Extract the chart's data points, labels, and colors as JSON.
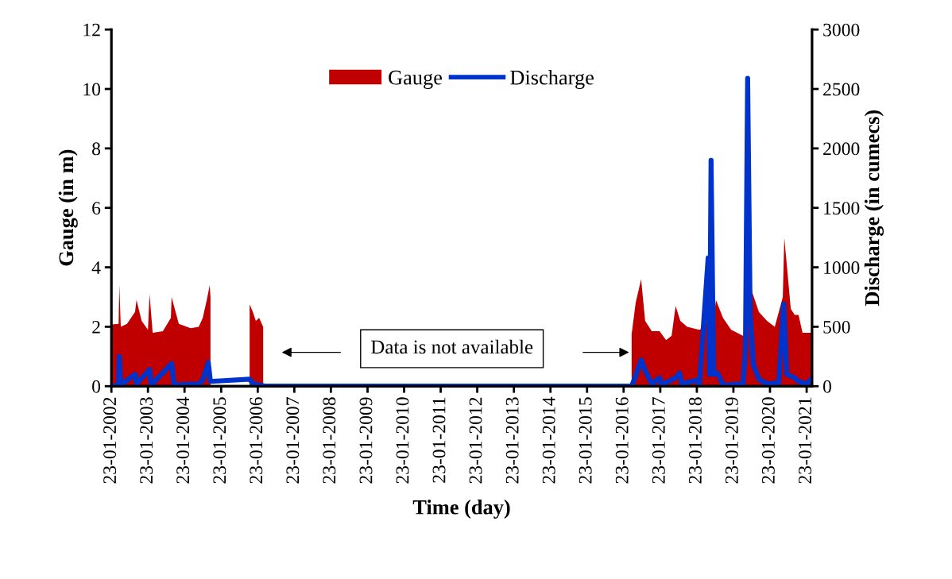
{
  "chart_data": {
    "type": "area",
    "xlabel": "Time (day)",
    "ylabel": "Gauge (in m)",
    "y2label": "Discharge (in cumecs)",
    "xlim": [
      "2002-01-23",
      "2021-03-18"
    ],
    "xticks": [
      {
        "value": "2002-01-23",
        "label": "23-01-2002"
      },
      {
        "value": "2003-01-23",
        "label": "23-01-2003"
      },
      {
        "value": "2004-01-23",
        "label": "23-01-2004"
      },
      {
        "value": "2005-01-23",
        "label": "23-01-2005"
      },
      {
        "value": "2006-01-23",
        "label": "23-01-2006"
      },
      {
        "value": "2007-01-23",
        "label": "23-01-2007"
      },
      {
        "value": "2008-01-23",
        "label": "23-01-2008"
      },
      {
        "value": "2009-01-23",
        "label": "23-01-2009"
      },
      {
        "value": "2010-01-23",
        "label": "23-01-2010"
      },
      {
        "value": "2011-01-23",
        "label": "23-01-2011"
      },
      {
        "value": "2012-01-23",
        "label": "23-01-2012"
      },
      {
        "value": "2013-01-23",
        "label": "23-01-2013"
      },
      {
        "value": "2014-01-23",
        "label": "23-01-2014"
      },
      {
        "value": "2015-01-23",
        "label": "23-01-2015"
      },
      {
        "value": "2016-01-23",
        "label": "23-01-2016"
      },
      {
        "value": "2017-01-23",
        "label": "23-01-2017"
      },
      {
        "value": "2018-01-23",
        "label": "23-01-2018"
      },
      {
        "value": "2019-01-23",
        "label": "23-01-2019"
      },
      {
        "value": "2020-01-23",
        "label": "23-01-2020"
      },
      {
        "value": "2021-01-23",
        "label": "23-01-2021"
      }
    ],
    "ylim": [
      0,
      12
    ],
    "yticks": [
      0,
      2,
      4,
      6,
      8,
      10,
      12
    ],
    "y2lim": [
      0,
      3000
    ],
    "y2ticks": [
      0,
      500,
      1000,
      1500,
      2000,
      2500,
      3000
    ],
    "legend": "top",
    "grid": false,
    "annotations": [
      "Data is not available"
    ],
    "series": [
      {
        "name": "Gauge",
        "color": "#c00000",
        "x": [
          "2002-01-30",
          "2002-04-05",
          "2002-04-12",
          "2002-04-27",
          "2002-06-28",
          "2002-09-16",
          "2002-10-01",
          "2002-11-21",
          "2003-01-23",
          "2003-02-08",
          "2003-03-11",
          "2003-06-21",
          "2003-09-09",
          "2003-09-16",
          "2003-11-27",
          "2004-03-25",
          "2004-06-13",
          "2004-07-23",
          "2004-09-01",
          "2004-10-01",
          "2004-10-08",
          "2004-10-19",
          "2005-10-26",
          "2005-11-03",
          "2005-12-05",
          "2006-01-04",
          "2006-02-06",
          "2006-03-18",
          "2006-03-26",
          "2016-03-29",
          "2016-04-12",
          "2016-05-22",
          "2016-07-16",
          "2016-08-25",
          "2016-10-30",
          "2017-01-16",
          "2017-03-22",
          "2017-05-16",
          "2017-06-25",
          "2017-08-11",
          "2017-10-19",
          "2018-02-17",
          "2018-04-20",
          "2018-06-14",
          "2018-07-24",
          "2018-08-02",
          "2018-10-11",
          "2019-01-01",
          "2019-04-28",
          "2019-06-14",
          "2019-07-09",
          "2019-07-16",
          "2019-10-04",
          "2019-12-24",
          "2020-03-11",
          "2020-05-30",
          "2020-06-14",
          "2020-08-18",
          "2020-09-26",
          "2020-11-03",
          "2020-12-13",
          "2021-03-18"
        ],
        "values": [
          2.08,
          2.1,
          3.42,
          2.0,
          2.1,
          2.5,
          2.9,
          2.2,
          1.9,
          3.1,
          1.8,
          1.85,
          2.3,
          3.0,
          2.1,
          1.95,
          2.0,
          2.3,
          2.9,
          3.4,
          3.0,
          null,
          null,
          2.75,
          2.5,
          2.2,
          2.3,
          2.0,
          null,
          null,
          1.75,
          2.8,
          3.6,
          2.2,
          1.85,
          1.85,
          1.55,
          1.7,
          2.7,
          2.2,
          2.0,
          1.9,
          2.0,
          4.9,
          2.65,
          2.9,
          2.3,
          1.9,
          1.7,
          1.7,
          4.8,
          3.3,
          2.5,
          2.2,
          2.0,
          3.0,
          5.0,
          2.6,
          2.4,
          2.4,
          1.8,
          1.8
        ]
      },
      {
        "name": "Discharge",
        "type": "line",
        "axis": "y2",
        "color": "#0033cc",
        "line_style": "solid",
        "x": [
          "2002-01-23",
          "2002-04-05",
          "2002-04-12",
          "2002-04-27",
          "2002-09-16",
          "2002-10-01",
          "2003-02-08",
          "2003-02-24",
          "2003-09-16",
          "2003-10-11",
          "2004-06-13",
          "2004-07-23",
          "2004-09-16",
          "2004-10-08",
          "2005-11-03",
          "2005-12-05",
          "2006-03-18",
          "2006-03-26",
          "2016-04-12",
          "2016-05-22",
          "2016-07-16",
          "2016-08-25",
          "2016-10-30",
          "2017-01-16",
          "2017-02-01",
          "2017-06-25",
          "2017-08-04",
          "2017-08-25",
          "2018-01-22",
          "2018-02-17",
          "2018-05-16",
          "2018-05-30",
          "2018-06-14",
          "2018-07-09",
          "2018-08-17",
          "2018-10-11",
          "2019-04-28",
          "2019-05-23",
          "2019-06-14",
          "2019-07-09",
          "2019-08-10",
          "2019-10-04",
          "2019-12-24",
          "2020-04-20",
          "2020-06-07",
          "2020-07-09",
          "2020-09-26",
          "2020-11-03",
          "2021-01-23",
          "2021-03-11"
        ],
        "values": [
          0,
          10,
          250,
          10,
          100,
          20,
          140,
          10,
          190,
          10,
          20,
          50,
          200,
          40,
          60,
          20,
          5,
          0,
          0,
          85,
          220,
          130,
          20,
          70,
          10,
          70,
          110,
          20,
          50,
          10,
          1080,
          100,
          1900,
          100,
          110,
          10,
          20,
          300,
          2590,
          600,
          180,
          60,
          20,
          30,
          690,
          100,
          70,
          40,
          20,
          60
        ]
      }
    ]
  }
}
